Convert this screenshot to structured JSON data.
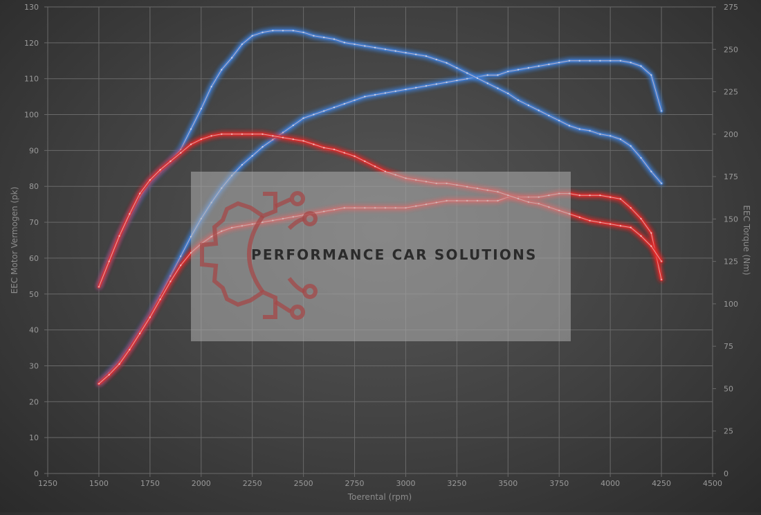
{
  "watermark": {
    "text": "PERFORMANCE CAR SOLUTIONS"
  },
  "colors": {
    "stock": "#3f7fd6",
    "tuned": "#e02a2a",
    "grid": "#6a6a6a",
    "tick_text": "#9a9a9a"
  },
  "chart_data": {
    "type": "line",
    "xlabel": "Toerental (rpm)",
    "ylabel_left": "EEC Motor Vermogen (pk)",
    "ylabel_right": "EEC Torque (Nm)",
    "xlim": [
      1250,
      4500
    ],
    "ylim_left": [
      0,
      130
    ],
    "ylim_right": [
      0,
      275
    ],
    "x_ticks": [
      "1250",
      "1500",
      "1750",
      "2000",
      "2250",
      "2500",
      "2750",
      "3000",
      "3250",
      "3500",
      "3750",
      "4000",
      "4250",
      "4500"
    ],
    "y_left_ticks": [
      "0",
      "10",
      "20",
      "30",
      "40",
      "50",
      "60",
      "70",
      "80",
      "90",
      "100",
      "110",
      "120",
      "130"
    ],
    "y_right_ticks": [
      "0",
      "25",
      "50",
      "75",
      "100",
      "125",
      "150",
      "175",
      "200",
      "225",
      "250",
      "275"
    ],
    "grid": true,
    "series": [
      {
        "color": "blue",
        "axis": "left",
        "x": [
          1500,
          1550,
          1600,
          1650,
          1700,
          1750,
          1800,
          1850,
          1900,
          1950,
          2000,
          2050,
          2100,
          2150,
          2200,
          2250,
          2300,
          2350,
          2400,
          2450,
          2500,
          2550,
          2600,
          2650,
          2700,
          2750,
          2800,
          2850,
          2900,
          2950,
          3000,
          3050,
          3100,
          3150,
          3200,
          3250,
          3300,
          3350,
          3400,
          3450,
          3500,
          3550,
          3600,
          3650,
          3700,
          3750,
          3800,
          3850,
          3900,
          3950,
          4000,
          4050,
          4100,
          4150,
          4200,
          4250
        ],
        "y": [
          25,
          28,
          31,
          35,
          39.5,
          44,
          49.5,
          55,
          60.5,
          66,
          71,
          75.5,
          79.5,
          83,
          86,
          88.5,
          91,
          93,
          95,
          97,
          99,
          100,
          101,
          102,
          103,
          104,
          105,
          105.5,
          106,
          106.5,
          107,
          107.5,
          108,
          108.5,
          109,
          109.5,
          110,
          110.5,
          111,
          111,
          112,
          112.5,
          113,
          113.5,
          114,
          114.5,
          115,
          115,
          115,
          115,
          115,
          115,
          114.5,
          113.5,
          111,
          101
        ]
      },
      {
        "color": "blue",
        "axis": "right",
        "x": [
          1500,
          1550,
          1600,
          1650,
          1700,
          1750,
          1800,
          1850,
          1900,
          1950,
          2000,
          2050,
          2100,
          2150,
          2200,
          2250,
          2300,
          2350,
          2400,
          2450,
          2500,
          2550,
          2600,
          2650,
          2700,
          2750,
          2800,
          2850,
          2900,
          2950,
          3000,
          3050,
          3100,
          3150,
          3200,
          3250,
          3300,
          3350,
          3400,
          3450,
          3500,
          3550,
          3600,
          3650,
          3700,
          3750,
          3800,
          3850,
          3900,
          3950,
          4000,
          4050,
          4100,
          4150,
          4200,
          4250
        ],
        "y": [
          110,
          126,
          140,
          152,
          163,
          172,
          178,
          184,
          191,
          203,
          215,
          228,
          238,
          245,
          253,
          258,
          260,
          261,
          261,
          261,
          260,
          258,
          257,
          256,
          254,
          253,
          252,
          251,
          250,
          249,
          248,
          247,
          246,
          244,
          242,
          239,
          236,
          233,
          230,
          227,
          224,
          220,
          217,
          214,
          211,
          208,
          205,
          203,
          202,
          200,
          199,
          197,
          193,
          186,
          178,
          171
        ]
      },
      {
        "color": "red",
        "axis": "left",
        "x": [
          1500,
          1550,
          1600,
          1650,
          1700,
          1750,
          1800,
          1850,
          1900,
          1950,
          2000,
          2050,
          2100,
          2150,
          2200,
          2250,
          2300,
          2350,
          2400,
          2450,
          2500,
          2550,
          2600,
          2650,
          2700,
          2750,
          2800,
          2850,
          2900,
          2950,
          3000,
          3050,
          3100,
          3150,
          3200,
          3250,
          3300,
          3350,
          3400,
          3450,
          3500,
          3550,
          3600,
          3650,
          3700,
          3750,
          3800,
          3850,
          3900,
          3950,
          4000,
          4050,
          4100,
          4150,
          4200,
          4250
        ],
        "y": [
          25,
          27.5,
          30.5,
          34.5,
          39,
          43.5,
          48.5,
          53.5,
          58,
          61.5,
          64,
          66,
          67.5,
          68.5,
          69,
          69.5,
          70,
          70.5,
          71,
          71.5,
          72,
          72.5,
          73,
          73.5,
          74,
          74,
          74,
          74,
          74,
          74,
          74,
          74.5,
          75,
          75.5,
          76,
          76,
          76,
          76,
          76,
          76,
          77,
          77,
          77,
          77,
          77.5,
          78,
          78,
          77.5,
          77.5,
          77.5,
          77,
          76.5,
          74,
          71,
          67,
          54
        ]
      },
      {
        "color": "red",
        "axis": "right",
        "x": [
          1500,
          1550,
          1600,
          1650,
          1700,
          1750,
          1800,
          1850,
          1900,
          1950,
          2000,
          2050,
          2100,
          2150,
          2200,
          2250,
          2300,
          2350,
          2400,
          2450,
          2500,
          2550,
          2600,
          2650,
          2700,
          2750,
          2800,
          2850,
          2900,
          2950,
          3000,
          3050,
          3100,
          3150,
          3200,
          3250,
          3300,
          3350,
          3400,
          3450,
          3500,
          3550,
          3600,
          3650,
          3700,
          3750,
          3800,
          3850,
          3900,
          3950,
          4000,
          4050,
          4100,
          4150,
          4200,
          4250
        ],
        "y": [
          110,
          125,
          140,
          153,
          165,
          173,
          179,
          184,
          189,
          194,
          197,
          199,
          200,
          200,
          200,
          200,
          200,
          199,
          198,
          197,
          196,
          194,
          192,
          191,
          189,
          187,
          184,
          181,
          178,
          176,
          174,
          173,
          172,
          171,
          171,
          170,
          169,
          168,
          167,
          166,
          164,
          162,
          160,
          159,
          157,
          155,
          153,
          151,
          149,
          148,
          147,
          146,
          145,
          140,
          134,
          125
        ]
      }
    ]
  }
}
